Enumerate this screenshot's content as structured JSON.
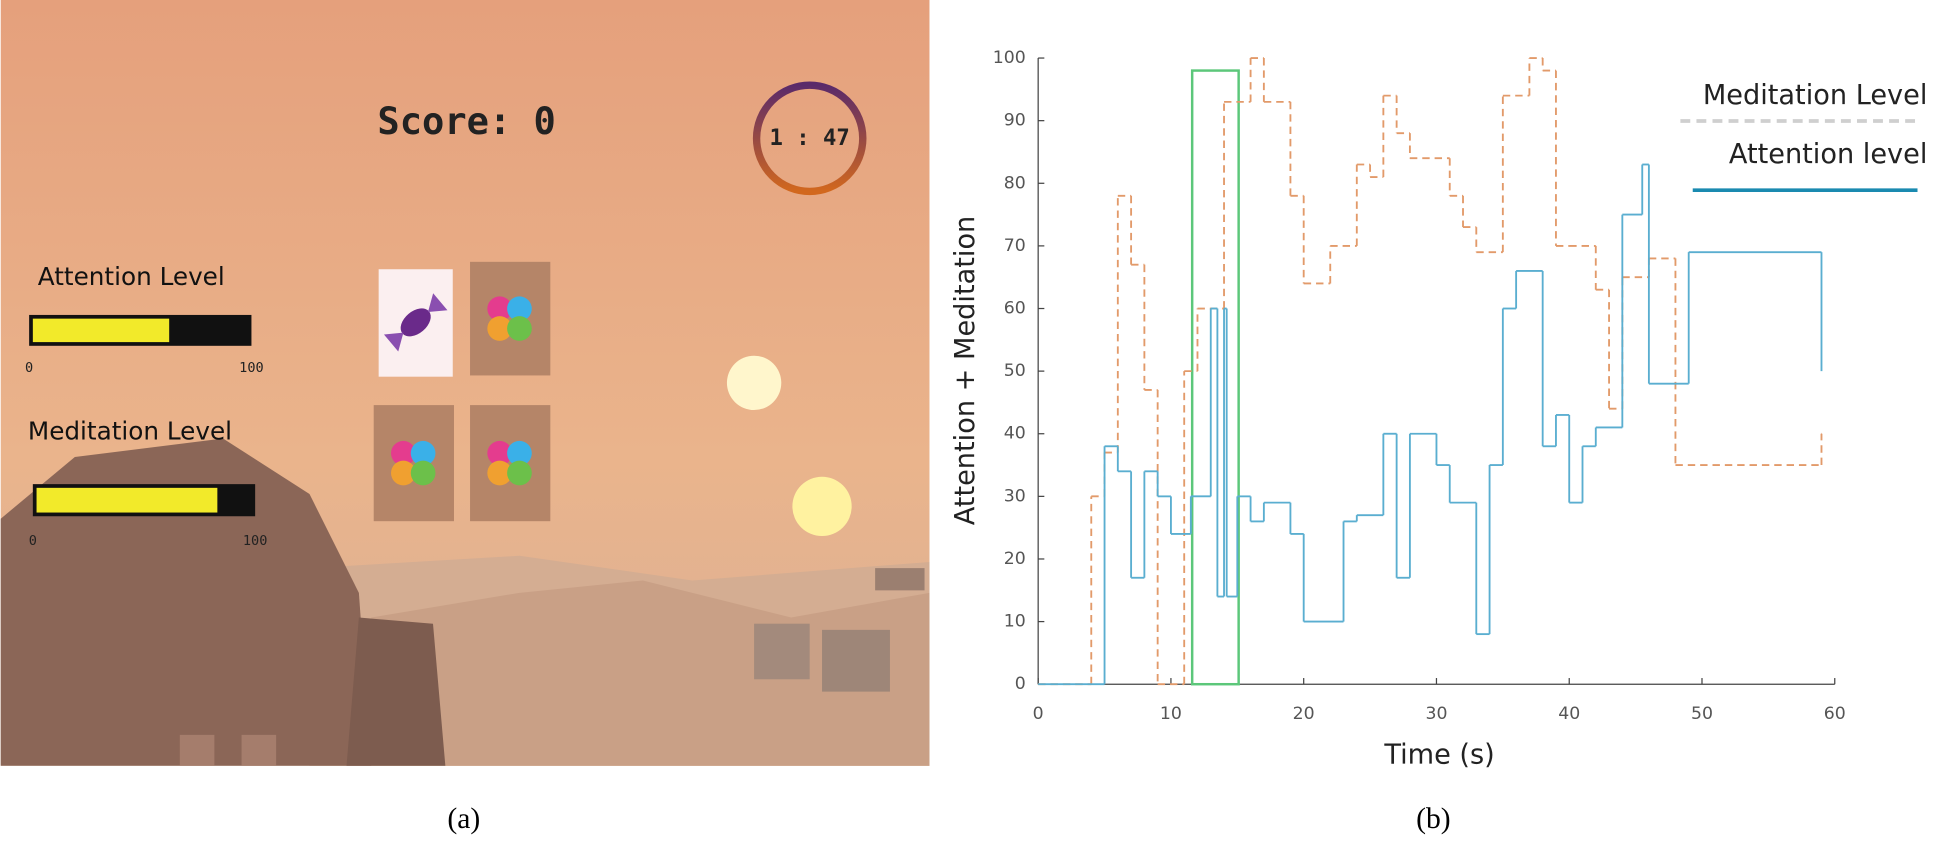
{
  "game": {
    "score": "Score: 0",
    "timer": "1 : 47",
    "attention": {
      "label": "Attention Level",
      "value": 63,
      "ticks": [
        0,
        100
      ]
    },
    "meditation": {
      "label": "Meditation Level",
      "value": 83,
      "ticks": [
        0,
        100
      ]
    }
  },
  "captions": [
    "(a)",
    "(b)"
  ],
  "chart_data": {
    "type": "step",
    "xlabel": "Time (s)",
    "ylabel": "Attention + Meditation",
    "xlim": [
      0,
      60
    ],
    "ylim": [
      0,
      100
    ],
    "xticks": [
      0,
      10,
      20,
      30,
      40,
      50,
      60
    ],
    "yticks": [
      0,
      10,
      20,
      30,
      40,
      50,
      60,
      70,
      80,
      90,
      100
    ],
    "highlight_xlim": [
      11.6,
      15.1
    ],
    "highlight_ylim": [
      0,
      98
    ],
    "highlight_color": "#5cc77a",
    "series": [
      {
        "name": "Meditation Level",
        "color": "#e29a6a",
        "legend_color": "#cfcfcf",
        "linestyle": "dashed",
        "x": [
          0,
          4,
          5,
          6,
          7,
          8,
          9,
          11,
          12,
          14,
          16,
          17,
          19,
          20,
          22,
          24,
          25,
          26,
          27,
          28,
          31,
          32,
          33,
          35,
          37,
          38,
          39,
          40,
          42,
          43,
          44,
          46,
          48,
          59
        ],
        "values": [
          0,
          30,
          37,
          78,
          67,
          47,
          0,
          50,
          60,
          93,
          100,
          93,
          78,
          64,
          70,
          83,
          81,
          94,
          88,
          84,
          78,
          73,
          69,
          94,
          100,
          98,
          70,
          70,
          63,
          44,
          65,
          68,
          35,
          40
        ]
      },
      {
        "name": "Attention level",
        "color": "#5aaed0",
        "legend_color": "#1a8ab0",
        "linestyle": "solid",
        "x": [
          0,
          5,
          6,
          7,
          8,
          9,
          10,
          11.5,
          13,
          13.5,
          14,
          14.2,
          15,
          16,
          17,
          19,
          20,
          23,
          24,
          26,
          27,
          28,
          30,
          31,
          33,
          34,
          35,
          36,
          38,
          39,
          40,
          41,
          42,
          44,
          45.5,
          46,
          49,
          59
        ],
        "values": [
          0,
          38,
          34,
          17,
          34,
          30,
          24,
          30,
          60,
          14,
          60,
          14,
          30,
          26,
          29,
          24,
          10,
          26,
          27,
          40,
          17,
          40,
          35,
          29,
          8,
          35,
          60,
          66,
          38,
          43,
          29,
          38,
          41,
          75,
          83,
          48,
          69,
          50
        ]
      }
    ]
  }
}
